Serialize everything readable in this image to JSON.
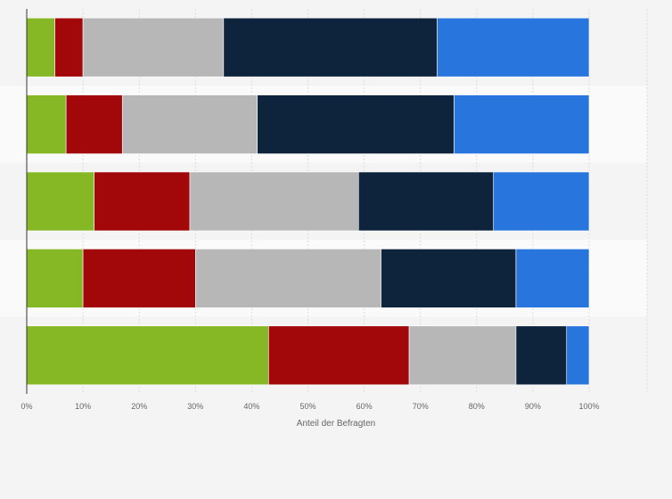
{
  "chart_data": {
    "type": "bar",
    "orientation": "horizontal",
    "stacked": true,
    "categories": [
      "",
      "",
      "",
      "",
      ""
    ],
    "series": [
      {
        "color": "#86b825",
        "values": [
          5,
          7,
          12,
          10,
          43
        ]
      },
      {
        "color": "#a20809",
        "values": [
          5,
          10,
          17,
          20,
          25
        ]
      },
      {
        "color": "#b7b7b7",
        "values": [
          25,
          24,
          30,
          33,
          19
        ]
      },
      {
        "color": "#0e243d",
        "values": [
          38,
          35,
          24,
          24,
          9
        ]
      },
      {
        "color": "#2876dd",
        "values": [
          27,
          24,
          17,
          13,
          4
        ]
      }
    ],
    "xlabel": "Anteil der Befragten",
    "ylabel": "",
    "xlim": [
      0,
      100
    ],
    "ticks": [
      "0%",
      "10%",
      "20%",
      "30%",
      "40%",
      "50%",
      "60%",
      "70%",
      "80%",
      "90%",
      "100%"
    ],
    "grid": true,
    "legend": "none"
  }
}
